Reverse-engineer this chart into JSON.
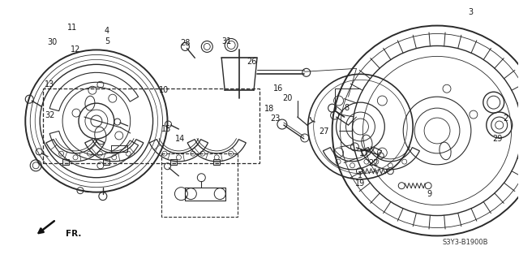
{
  "bg_color": "#ffffff",
  "fig_width": 6.4,
  "fig_height": 3.19,
  "dpi": 100,
  "diagram_code": "S3Y3-B1900B",
  "line_color": "#2a2a2a",
  "text_color": "#1a1a1a",
  "font_size": 7.0
}
